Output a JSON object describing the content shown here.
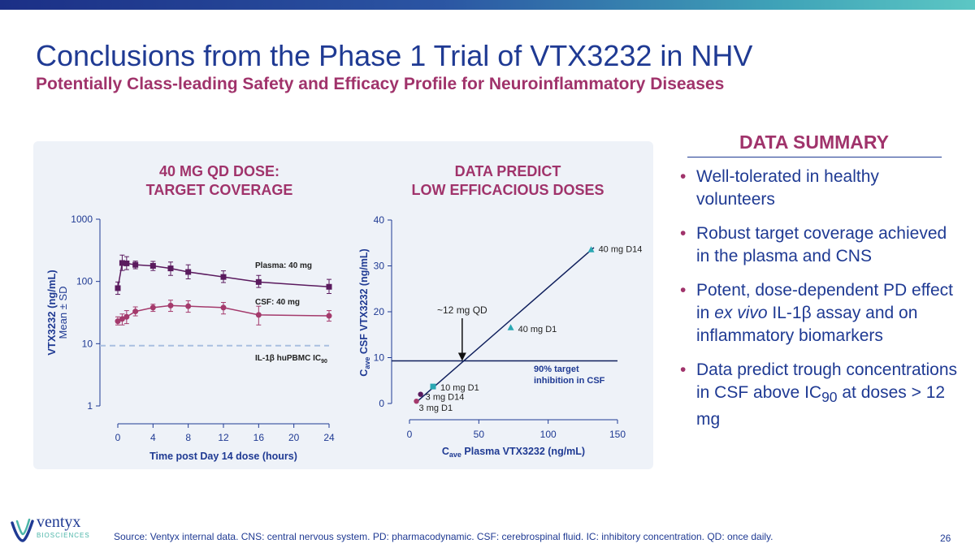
{
  "title": "Conclusions from the Phase 1 Trial of VTX3232 in NHV",
  "subtitle": "Potentially Class-leading Safety and Efficacy Profile for Neuroinflammatory Diseases",
  "panel_left": {
    "heading_line1": "40 MG QD DOSE:",
    "heading_line2": "TARGET COVERAGE"
  },
  "panel_right": {
    "heading_line1": "DATA PREDICT",
    "heading_line2": "LOW EFFICACIOUS DOSES"
  },
  "summary": {
    "heading": "DATA SUMMARY",
    "bullet_char": "•",
    "bullets": [
      {
        "text": "Well-tolerated in healthy volunteers"
      },
      {
        "text": "Robust target coverage achieved in the plasma and CNS"
      },
      {
        "pre": "Potent, dose-dependent PD effect in ",
        "em": "ex vivo",
        "post": " IL-1β assay and on inflammatory biomarkers"
      },
      {
        "pre": "Data predict trough concentrations in CSF above IC",
        "sub": "90",
        "post": " at doses > 12 mg"
      }
    ]
  },
  "source": "Source: Ventyx internal data. CNS: central nervous system. PD: pharmacodynamic. CSF: cerebrospinal fluid. IC: inhibitory concentration. QD: once daily.",
  "page_number": "26",
  "logo": {
    "name": "ventyx",
    "sub": "BIOSCIENCES"
  },
  "colors": {
    "navy": "#1f3a93",
    "magenta": "#a0336b",
    "plasma": "#5a1a5e",
    "csf": "#a43a6c",
    "teal": "#2aa7b3",
    "dashed": "#a9bfe0"
  },
  "chart_data": [
    {
      "type": "line",
      "y_scale": "log",
      "xlabel": "Time post Day 14 dose (hours)",
      "ylabel": "VTX3232 (ng/mL)",
      "ylabel2": "Mean ± SD",
      "xlim": [
        0,
        24
      ],
      "ylim": [
        1,
        1000
      ],
      "xticks": [
        0,
        4,
        8,
        12,
        16,
        20,
        24
      ],
      "yticks": [
        1,
        10,
        100,
        1000
      ],
      "ytick_labels": [
        "1",
        "10",
        "100",
        "1000"
      ],
      "series": [
        {
          "name": "Plasma: 40 mg",
          "label": "Plasma: 40 mg",
          "marker": "square",
          "x": [
            0,
            0.5,
            1,
            2,
            4,
            6,
            8,
            12,
            16,
            24
          ],
          "y": [
            78,
            198,
            195,
            185,
            178,
            162,
            142,
            118,
            98,
            82
          ],
          "err_low": [
            62,
            150,
            155,
            160,
            150,
            125,
            110,
            96,
            80,
            64
          ],
          "err_high": [
            98,
            265,
            250,
            212,
            210,
            205,
            185,
            148,
            125,
            108
          ]
        },
        {
          "name": "CSF: 40 mg",
          "label": "CSF: 40 mg",
          "marker": "circle",
          "x": [
            0,
            0.5,
            1,
            2,
            4,
            6,
            8,
            12,
            16,
            24
          ],
          "y": [
            23,
            25,
            27,
            33,
            38,
            41,
            40,
            38,
            29,
            28
          ],
          "err_low": [
            20,
            20,
            21,
            28,
            33,
            33,
            32,
            30,
            20,
            23
          ],
          "err_high": [
            27,
            30,
            34,
            39,
            43,
            50,
            49,
            46,
            40,
            34
          ]
        }
      ],
      "reference_line": {
        "y": 9.3,
        "label": "IL-1β huPBMC IC",
        "label_sub": "90"
      }
    },
    {
      "type": "scatter",
      "xlabel_main": "C",
      "xlabel_sub": "ave",
      "xlabel_rest": " Plasma VTX3232 (ng/mL)",
      "ylabel_main": "C",
      "ylabel_sub": "ave",
      "ylabel_rest": " CSF VTX3232 (ng/mL)",
      "xlim": [
        0,
        150
      ],
      "ylim": [
        0,
        40
      ],
      "xticks": [
        0,
        50,
        100,
        150
      ],
      "yticks": [
        0,
        10,
        20,
        30,
        40
      ],
      "points": [
        {
          "label": "3 mg D1",
          "x": 5,
          "y": 0.5,
          "marker": "circle",
          "color": "#a43a6c"
        },
        {
          "label": "3 mg D14",
          "x": 8,
          "y": 2,
          "marker": "circle",
          "color": "#5a1a5e"
        },
        {
          "label": "10 mg D1",
          "x": 17,
          "y": 3.7,
          "marker": "square",
          "color": "#2aa7b3"
        },
        {
          "label": "40 mg D1",
          "x": 73,
          "y": 16.5,
          "marker": "triangle",
          "color": "#2aa7b3"
        },
        {
          "label": "40 mg D14",
          "x": 131,
          "y": 33.5,
          "marker": "triangle",
          "color": "#2aa7b3"
        }
      ],
      "fit_line": {
        "x": [
          5,
          133
        ],
        "y": [
          0.3,
          34
        ]
      },
      "reference_line": {
        "y": 9.3,
        "label_line1": "90% target",
        "label_line2": "inhibition in CSF"
      },
      "annotation": {
        "text": "~12 mg QD",
        "x": 38,
        "y": 9.3
      }
    }
  ]
}
